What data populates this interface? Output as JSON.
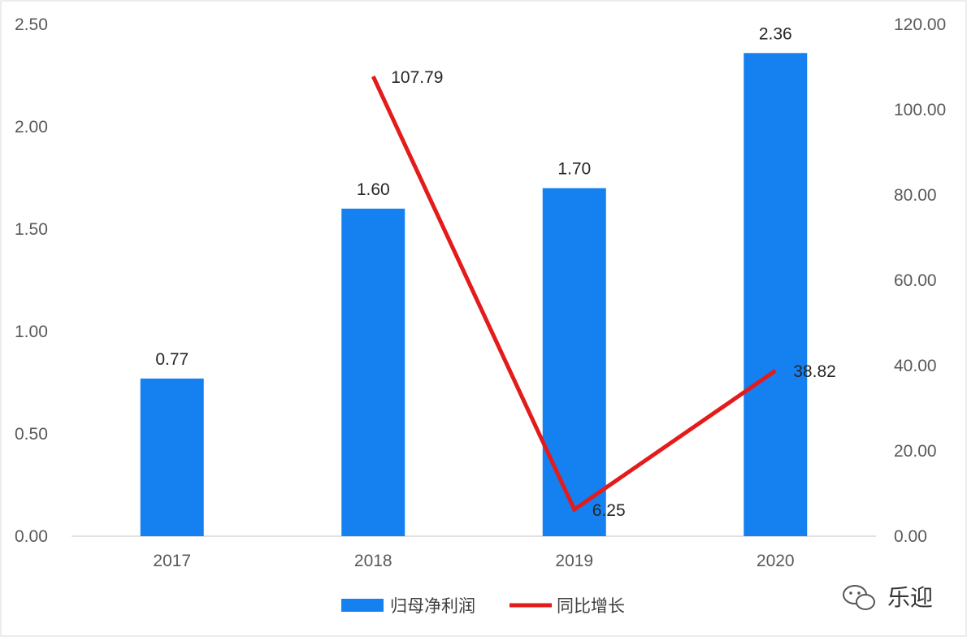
{
  "chart_data": {
    "type": "bar",
    "categories": [
      "2017",
      "2018",
      "2019",
      "2020"
    ],
    "series": [
      {
        "name": "归母净利润",
        "type": "bar",
        "axis": "left",
        "values": [
          0.77,
          1.6,
          1.7,
          2.36
        ],
        "labels": [
          "0.77",
          "1.60",
          "1.70",
          "2.36"
        ],
        "color": "#1580F0"
      },
      {
        "name": "同比增长",
        "type": "line",
        "axis": "right",
        "values": [
          null,
          107.79,
          6.25,
          38.82
        ],
        "labels": [
          "",
          "107.79",
          "6.25",
          "38.82"
        ],
        "color": "#E31B1B"
      }
    ],
    "y_left": {
      "ylim": [
        0,
        2.5
      ],
      "ticks": [
        "0.00",
        "0.50",
        "1.00",
        "1.50",
        "2.00",
        "2.50"
      ]
    },
    "y_right": {
      "ylim": [
        0,
        120
      ],
      "ticks": [
        "0.00",
        "20.00",
        "40.00",
        "60.00",
        "80.00",
        "100.00",
        "120.00"
      ]
    },
    "grid": false,
    "legend_position": "bottom-center"
  },
  "watermark": {
    "text": "乐迎",
    "icon": "wechat-icon"
  }
}
